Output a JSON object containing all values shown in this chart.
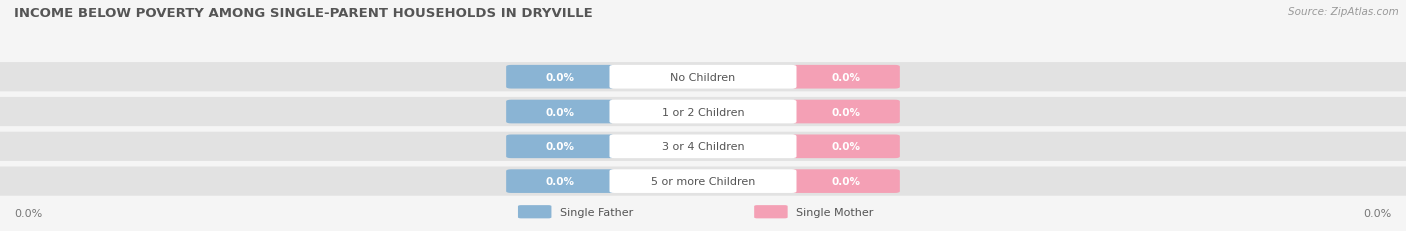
{
  "title": "INCOME BELOW POVERTY AMONG SINGLE-PARENT HOUSEHOLDS IN DRYVILLE",
  "source": "Source: ZipAtlas.com",
  "categories": [
    "No Children",
    "1 or 2 Children",
    "3 or 4 Children",
    "5 or more Children"
  ],
  "father_values": [
    0.0,
    0.0,
    0.0,
    0.0
  ],
  "mother_values": [
    0.0,
    0.0,
    0.0,
    0.0
  ],
  "father_color": "#8ab4d4",
  "mother_color": "#f4a0b5",
  "category_label_color": "#555555",
  "row_bg_color": "#e2e2e2",
  "bg_color": "#f5f5f5",
  "title_color": "#555555",
  "title_fontsize": 9.5,
  "source_fontsize": 7.5,
  "legend_father": "Single Father",
  "legend_mother": "Single Mother"
}
